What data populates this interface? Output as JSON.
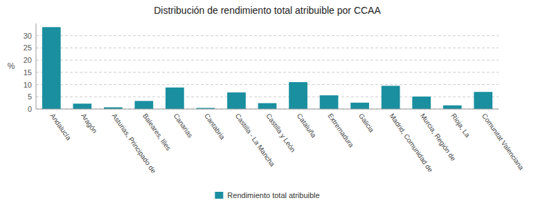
{
  "chart_data": {
    "type": "bar",
    "title": "Distribución de rendimiento total atribuible por CCAA",
    "ylabel": "%",
    "categories": [
      "Andalucía",
      "Aragón",
      "Asturias, Principado de",
      "Baleares, Illes",
      "Canarias",
      "Cantabria",
      "Castilla - La Mancha",
      "Castilla y León",
      "Cataluña",
      "Extremadura",
      "Galicia",
      "Madrid, Comunidad de",
      "Murcia, Región de",
      "Rioja, La",
      "Comunitat Valenciana"
    ],
    "series": [
      {
        "name": "Rendimiento total atribuible",
        "color": "#1a8fa0",
        "values": [
          33.5,
          2.2,
          0.7,
          3.3,
          8.8,
          0.45,
          6.8,
          2.4,
          11.0,
          5.6,
          2.6,
          9.5,
          5.1,
          1.5,
          7.0
        ]
      }
    ],
    "ylim": [
      0,
      35
    ],
    "yticks": [
      0,
      5,
      10,
      15,
      20,
      25,
      30
    ],
    "grid": true,
    "legend": "bottom"
  }
}
